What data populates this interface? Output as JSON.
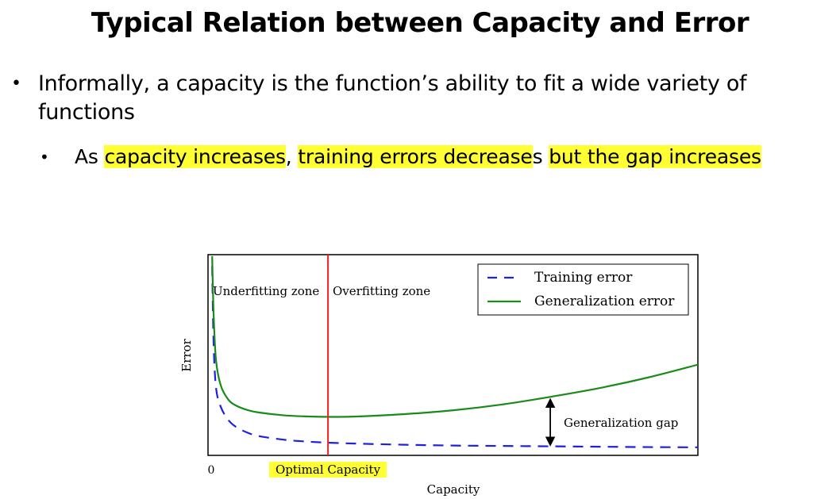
{
  "slide": {
    "title": "Typical Relation between Capacity and Error",
    "bullet1": "Informally, a capacity is the function’s ability to fit a wide variety of functions",
    "bullet2": {
      "prefix": "As ",
      "hl1": "capacity increases",
      "sep1": ", ",
      "hl2": "training errors decrease",
      "sep2": "s ",
      "hl3": "but the gap increases"
    },
    "highlight_color": "#ffff33"
  },
  "chart_data": {
    "type": "line",
    "title": "",
    "xlabel": "Capacity",
    "ylabel": "Error",
    "x_tick_labels": [
      "0"
    ],
    "optimal_label": "Optimal Capacity",
    "optimal_x": 2.4,
    "xlim": [
      0,
      10
    ],
    "ylim": [
      0,
      10
    ],
    "zones": [
      "Underfitting zone",
      "Overfitting zone"
    ],
    "annotation": "Generalization gap",
    "legend": "top-right",
    "colors": {
      "training": "#1f1fe6",
      "generalization": "#1a8a1a",
      "optimal_line": "#ee2222"
    },
    "series": [
      {
        "name": "Training error",
        "style": "dashed",
        "x": [
          0.02,
          0.05,
          0.1,
          0.2,
          0.35,
          0.5,
          0.75,
          1.0,
          1.5,
          2.0,
          2.5,
          3.0,
          4.0,
          5.0,
          6.0,
          7.0,
          8.0,
          9.0,
          10.0
        ],
        "y": [
          9.5,
          5.5,
          3.2,
          2.2,
          1.55,
          1.2,
          0.88,
          0.7,
          0.52,
          0.42,
          0.36,
          0.32,
          0.26,
          0.22,
          0.2,
          0.18,
          0.16,
          0.14,
          0.13
        ]
      },
      {
        "name": "Generalization error",
        "style": "solid",
        "x": [
          0.02,
          0.05,
          0.1,
          0.2,
          0.35,
          0.5,
          0.75,
          1.0,
          1.5,
          2.0,
          2.5,
          3.0,
          4.0,
          5.0,
          6.0,
          7.0,
          8.0,
          9.0,
          10.0
        ],
        "y": [
          10.0,
          7.0,
          4.6,
          3.3,
          2.6,
          2.3,
          2.05,
          1.92,
          1.78,
          1.72,
          1.7,
          1.72,
          1.85,
          2.05,
          2.35,
          2.75,
          3.2,
          3.75,
          4.4
        ]
      }
    ],
    "gap_x": 7.0
  }
}
